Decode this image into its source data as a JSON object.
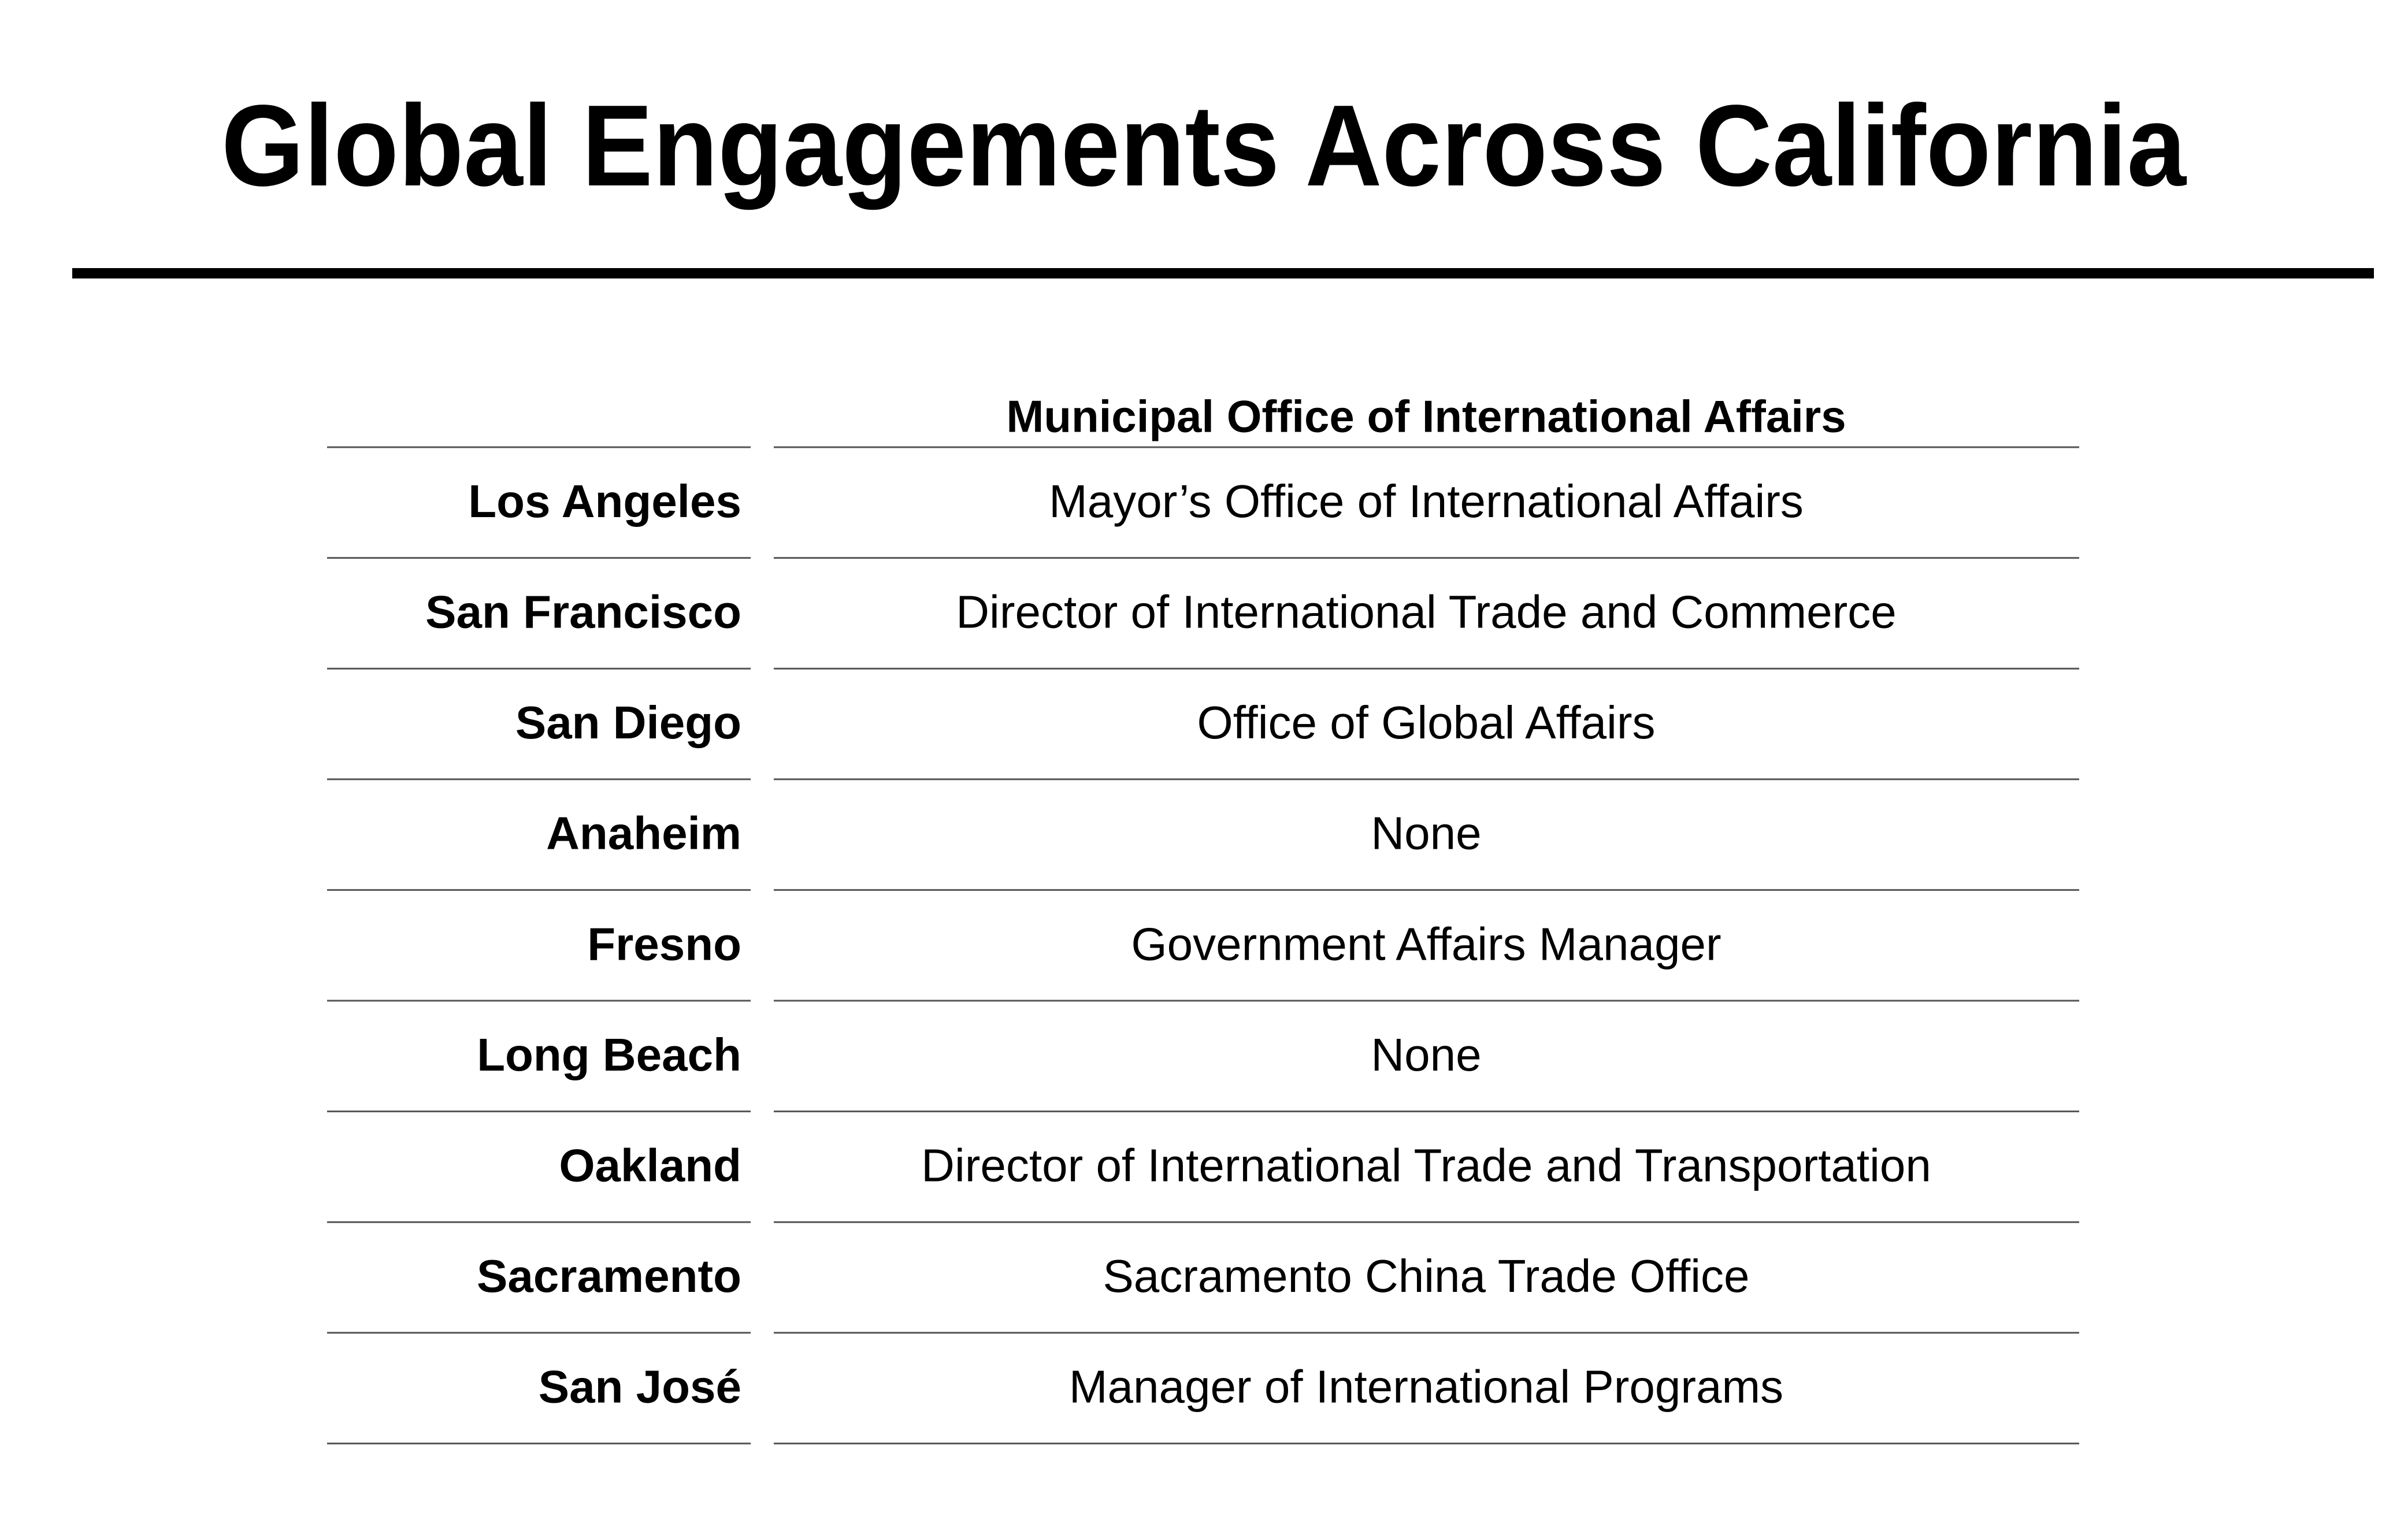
{
  "header": {
    "title": "Global Engagements Across California"
  },
  "table": {
    "column_header": "Municipal Office of International Affairs",
    "rows": [
      [
        "Los Angeles",
        "Mayor’s Office of International Affairs"
      ],
      [
        "San Francisco",
        "Director of International Trade and Commerce"
      ],
      [
        "San Diego",
        "Office of Global Affairs"
      ],
      [
        "Anaheim",
        "None"
      ],
      [
        "Fresno",
        "Government Affairs Manager"
      ],
      [
        "Long Beach",
        "None"
      ],
      [
        "Oakland",
        "Director of International Trade and Transportation"
      ],
      [
        "Sacramento",
        "Sacramento China Trade Office"
      ],
      [
        "San José",
        "Manager of International Programs"
      ]
    ]
  }
}
